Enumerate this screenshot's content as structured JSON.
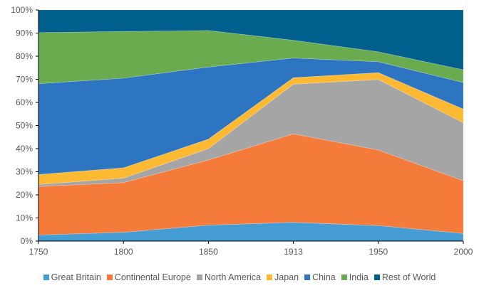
{
  "chart_data": {
    "type": "area",
    "stacked": true,
    "percent": true,
    "categories": [
      "1750",
      "1800",
      "1850",
      "1913",
      "1950",
      "2000"
    ],
    "ylim": [
      0,
      100
    ],
    "yticks": [
      "0%",
      "10%",
      "20%",
      "30%",
      "40%",
      "50%",
      "60%",
      "70%",
      "80%",
      "90%",
      "100%"
    ],
    "legend_position": "bottom",
    "grid": false,
    "series": [
      {
        "name": "Great Britain",
        "color": "#469dd3",
        "values": [
          2.6,
          3.8,
          6.9,
          8.1,
          6.7,
          3.3
        ]
      },
      {
        "name": "Continental Europe",
        "color": "#f57b3b",
        "values": [
          21.0,
          21.5,
          28.2,
          38.3,
          32.7,
          22.8
        ]
      },
      {
        "name": "North America",
        "color": "#a5a5a5",
        "values": [
          0.9,
          1.9,
          4.9,
          21.5,
          30.5,
          25.1
        ]
      },
      {
        "name": "Japan",
        "color": "#fdb932",
        "values": [
          4.3,
          4.5,
          4.1,
          2.8,
          3.0,
          5.9
        ]
      },
      {
        "name": "China",
        "color": "#2e75c1",
        "values": [
          39.3,
          38.8,
          31.2,
          8.5,
          4.7,
          11.5
        ]
      },
      {
        "name": "India",
        "color": "#6aab4f",
        "values": [
          22.1,
          20.2,
          15.8,
          7.7,
          4.3,
          5.5
        ]
      },
      {
        "name": "Rest of World",
        "color": "#005f8c",
        "values": [
          9.8,
          9.3,
          8.9,
          13.1,
          18.1,
          25.9
        ]
      }
    ]
  }
}
